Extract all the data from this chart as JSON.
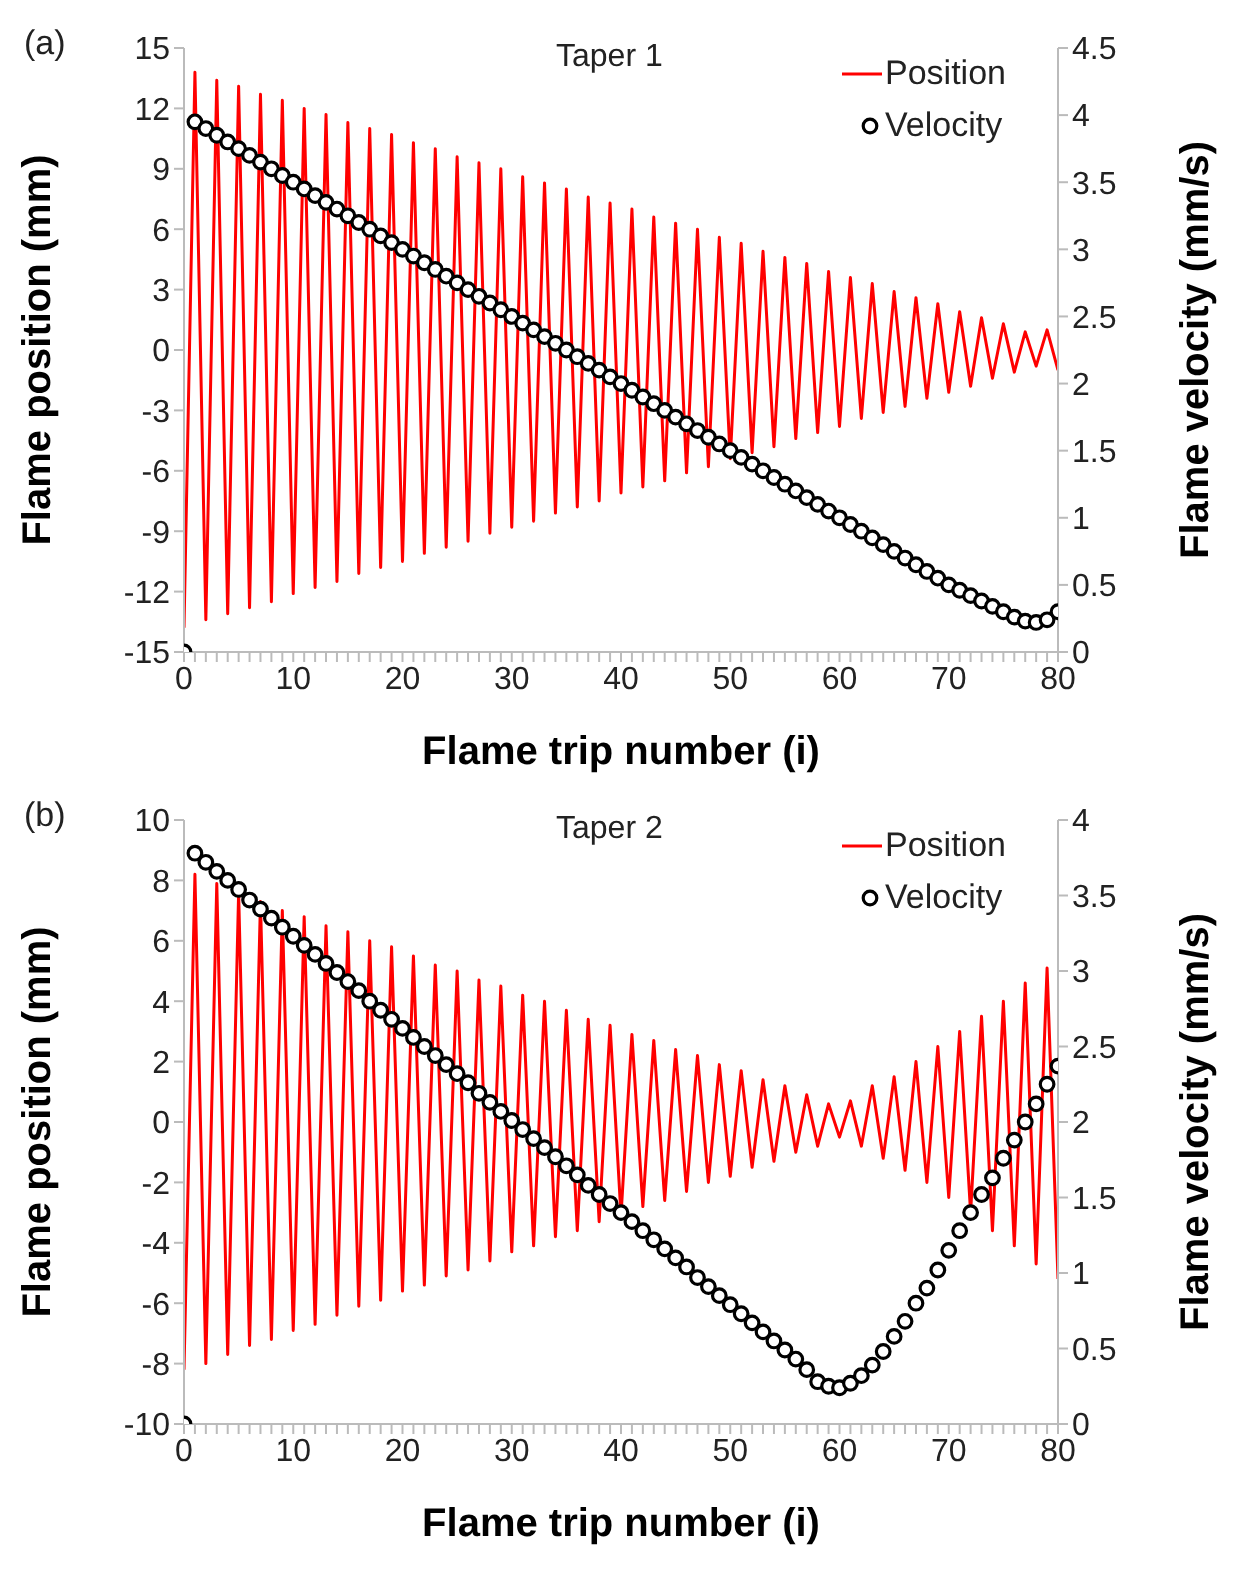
{
  "chart_data": [
    {
      "type": "line",
      "annotations": [
        "(a)",
        "Taper 1"
      ],
      "xlabel": "Flame trip number (i)",
      "ylabel": "Flame position (mm)",
      "y2label": "Flame velocity (mm/s)",
      "legend": "top right",
      "line_style": "solid",
      "x": [
        0,
        1,
        2,
        3,
        4,
        5,
        6,
        7,
        8,
        9,
        10,
        11,
        12,
        13,
        14,
        15,
        16,
        17,
        18,
        19,
        20,
        21,
        22,
        23,
        24,
        25,
        26,
        27,
        28,
        29,
        30,
        31,
        32,
        33,
        34,
        35,
        36,
        37,
        38,
        39,
        40,
        41,
        42,
        43,
        44,
        45,
        46,
        47,
        48,
        49,
        50,
        51,
        52,
        53,
        54,
        55,
        56,
        57,
        58,
        59,
        60,
        61,
        62,
        63,
        64,
        65,
        66,
        67,
        68,
        69,
        70,
        71,
        72,
        73,
        74,
        75,
        76,
        77,
        78,
        79,
        80
      ],
      "xlim": [
        0,
        80
      ],
      "xticks": [
        0,
        {
          "value": 1,
          "label": null
        },
        {
          "value": 2,
          "label": null
        },
        {
          "value": 3,
          "label": null
        },
        {
          "value": 4,
          "label": null
        },
        {
          "value": 5,
          "label": null
        },
        {
          "value": 6,
          "label": null
        },
        {
          "value": 7,
          "label": null
        },
        {
          "value": 8,
          "label": null
        },
        {
          "value": 9,
          "label": null
        },
        10,
        {
          "value": 11,
          "label": null
        },
        {
          "value": 12,
          "label": null
        },
        {
          "value": 13,
          "label": null
        },
        {
          "value": 14,
          "label": null
        },
        {
          "value": 15,
          "label": null
        },
        {
          "value": 16,
          "label": null
        },
        {
          "value": 17,
          "label": null
        },
        {
          "value": 18,
          "label": null
        },
        {
          "value": 19,
          "label": null
        },
        20,
        {
          "value": 21,
          "label": null
        },
        {
          "value": 22,
          "label": null
        },
        {
          "value": 23,
          "label": null
        },
        {
          "value": 24,
          "label": null
        },
        {
          "value": 25,
          "label": null
        },
        {
          "value": 26,
          "label": null
        },
        {
          "value": 27,
          "label": null
        },
        {
          "value": 28,
          "label": null
        },
        {
          "value": 29,
          "label": null
        },
        30,
        {
          "value": 31,
          "label": null
        },
        {
          "value": 32,
          "label": null
        },
        {
          "value": 33,
          "label": null
        },
        {
          "value": 34,
          "label": null
        },
        {
          "value": 35,
          "label": null
        },
        {
          "value": 36,
          "label": null
        },
        {
          "value": 37,
          "label": null
        },
        {
          "value": 38,
          "label": null
        },
        {
          "value": 39,
          "label": null
        },
        40,
        {
          "value": 41,
          "label": null
        },
        {
          "value": 42,
          "label": null
        },
        {
          "value": 43,
          "label": null
        },
        {
          "value": 44,
          "label": null
        },
        {
          "value": 45,
          "label": null
        },
        {
          "value": 46,
          "label": null
        },
        {
          "value": 47,
          "label": null
        },
        {
          "value": 48,
          "label": null
        },
        {
          "value": 49,
          "label": null
        },
        50,
        {
          "value": 51,
          "label": null
        },
        {
          "value": 52,
          "label": null
        },
        {
          "value": 53,
          "label": null
        },
        {
          "value": 54,
          "label": null
        },
        {
          "value": 55,
          "label": null
        },
        {
          "value": 56,
          "label": null
        },
        {
          "value": 57,
          "label": null
        },
        {
          "value": 58,
          "label": null
        },
        {
          "value": 59,
          "label": null
        },
        60,
        {
          "value": 61,
          "label": null
        },
        {
          "value": 62,
          "label": null
        },
        {
          "value": 63,
          "label": null
        },
        {
          "value": 64,
          "label": null
        },
        {
          "value": 65,
          "label": null
        },
        {
          "value": 66,
          "label": null
        },
        {
          "value": 67,
          "label": null
        },
        {
          "value": 68,
          "label": null
        },
        {
          "value": 69,
          "label": null
        },
        70,
        {
          "value": 71,
          "label": null
        },
        {
          "value": 72,
          "label": null
        },
        {
          "value": 73,
          "label": null
        },
        {
          "value": 74,
          "label": null
        },
        {
          "value": 75,
          "label": null
        },
        {
          "value": 76,
          "label": null
        },
        {
          "value": 77,
          "label": null
        },
        {
          "value": 78,
          "label": null
        },
        {
          "value": 79,
          "label": null
        },
        80
      ],
      "ylim": [
        -15,
        15
      ],
      "yticks": [
        -15,
        -12,
        -9,
        -6,
        -3,
        0,
        3,
        6,
        9,
        12,
        15
      ],
      "y2lim": [
        0,
        4.5
      ],
      "y2ticks": [
        0,
        0.5,
        1,
        1.5,
        2,
        2.5,
        3,
        3.5,
        4,
        4.5
      ],
      "series": [
        {
          "name": "Position",
          "color": "#ff0000",
          "marker": "none",
          "values": [
            -13.8,
            13.8,
            -13.4,
            13.4,
            -13.1,
            13.1,
            -12.8,
            12.7,
            -12.5,
            12.4,
            -12.1,
            12.0,
            -11.8,
            11.7,
            -11.5,
            11.3,
            -11.1,
            11.0,
            -10.8,
            10.7,
            -10.5,
            10.3,
            -10.1,
            10.0,
            -9.8,
            9.6,
            -9.5,
            9.3,
            -9.1,
            9.0,
            -8.8,
            8.6,
            -8.5,
            8.3,
            -8.1,
            8.0,
            -7.8,
            7.6,
            -7.5,
            7.3,
            -7.1,
            7.0,
            -6.8,
            6.6,
            -6.5,
            6.3,
            -6.1,
            6.0,
            -5.8,
            5.6,
            -5.4,
            5.3,
            -5.1,
            4.9,
            -4.8,
            4.6,
            -4.4,
            4.3,
            -4.1,
            3.9,
            -3.8,
            3.6,
            -3.4,
            3.3,
            -3.1,
            2.9,
            -2.8,
            2.6,
            -2.4,
            2.3,
            -2.1,
            1.9,
            -1.8,
            1.6,
            -1.4,
            1.3,
            -1.1,
            0.9,
            -0.8,
            1.0,
            -1.0
          ]
        },
        {
          "name": "Velocity",
          "type": "scatter",
          "axis": "y2",
          "color": "#000000",
          "marker": "circle",
          "values": [
            0,
            3.95,
            3.9,
            3.85,
            3.8,
            3.75,
            3.7,
            3.65,
            3.6,
            3.55,
            3.5,
            3.45,
            3.4,
            3.35,
            3.3,
            3.25,
            3.2,
            3.15,
            3.1,
            3.05,
            3.0,
            2.95,
            2.9,
            2.85,
            2.8,
            2.75,
            2.7,
            2.65,
            2.6,
            2.55,
            2.5,
            2.45,
            2.4,
            2.35,
            2.3,
            2.25,
            2.2,
            2.15,
            2.1,
            2.05,
            2.0,
            1.95,
            1.9,
            1.85,
            1.8,
            1.75,
            1.7,
            1.65,
            1.6,
            1.55,
            1.5,
            1.45,
            1.4,
            1.35,
            1.3,
            1.25,
            1.2,
            1.15,
            1.1,
            1.05,
            1.0,
            0.95,
            0.9,
            0.85,
            0.8,
            0.75,
            0.7,
            0.65,
            0.6,
            0.55,
            0.5,
            0.46,
            0.42,
            0.38,
            0.34,
            0.3,
            0.26,
            0.23,
            0.22,
            0.24,
            0.3
          ]
        }
      ]
    },
    {
      "type": "line",
      "annotations": [
        "(b)",
        "Taper 2"
      ],
      "xlabel": "Flame trip number (i)",
      "ylabel": "Flame position (mm)",
      "y2label": "Flame velocity (mm/s)",
      "legend": "top right",
      "line_style": "solid",
      "x": [
        0,
        1,
        2,
        3,
        4,
        5,
        6,
        7,
        8,
        9,
        10,
        11,
        12,
        13,
        14,
        15,
        16,
        17,
        18,
        19,
        20,
        21,
        22,
        23,
        24,
        25,
        26,
        27,
        28,
        29,
        30,
        31,
        32,
        33,
        34,
        35,
        36,
        37,
        38,
        39,
        40,
        41,
        42,
        43,
        44,
        45,
        46,
        47,
        48,
        49,
        50,
        51,
        52,
        53,
        54,
        55,
        56,
        57,
        58,
        59,
        60,
        61,
        62,
        63,
        64,
        65,
        66,
        67,
        68,
        69,
        70,
        71,
        72,
        73,
        74,
        75,
        76,
        77,
        78,
        79,
        80
      ],
      "xlim": [
        0,
        80
      ],
      "xticks": [
        0,
        {
          "value": 1,
          "label": null
        },
        {
          "value": 2,
          "label": null
        },
        {
          "value": 3,
          "label": null
        },
        {
          "value": 4,
          "label": null
        },
        {
          "value": 5,
          "label": null
        },
        {
          "value": 6,
          "label": null
        },
        {
          "value": 7,
          "label": null
        },
        {
          "value": 8,
          "label": null
        },
        {
          "value": 9,
          "label": null
        },
        10,
        {
          "value": 11,
          "label": null
        },
        {
          "value": 12,
          "label": null
        },
        {
          "value": 13,
          "label": null
        },
        {
          "value": 14,
          "label": null
        },
        {
          "value": 15,
          "label": null
        },
        {
          "value": 16,
          "label": null
        },
        {
          "value": 17,
          "label": null
        },
        {
          "value": 18,
          "label": null
        },
        {
          "value": 19,
          "label": null
        },
        20,
        {
          "value": 21,
          "label": null
        },
        {
          "value": 22,
          "label": null
        },
        {
          "value": 23,
          "label": null
        },
        {
          "value": 24,
          "label": null
        },
        {
          "value": 25,
          "label": null
        },
        {
          "value": 26,
          "label": null
        },
        {
          "value": 27,
          "label": null
        },
        {
          "value": 28,
          "label": null
        },
        {
          "value": 29,
          "label": null
        },
        30,
        {
          "value": 31,
          "label": null
        },
        {
          "value": 32,
          "label": null
        },
        {
          "value": 33,
          "label": null
        },
        {
          "value": 34,
          "label": null
        },
        {
          "value": 35,
          "label": null
        },
        {
          "value": 36,
          "label": null
        },
        {
          "value": 37,
          "label": null
        },
        {
          "value": 38,
          "label": null
        },
        {
          "value": 39,
          "label": null
        },
        40,
        {
          "value": 41,
          "label": null
        },
        {
          "value": 42,
          "label": null
        },
        {
          "value": 43,
          "label": null
        },
        {
          "value": 44,
          "label": null
        },
        {
          "value": 45,
          "label": null
        },
        {
          "value": 46,
          "label": null
        },
        {
          "value": 47,
          "label": null
        },
        {
          "value": 48,
          "label": null
        },
        {
          "value": 49,
          "label": null
        },
        50,
        {
          "value": 51,
          "label": null
        },
        {
          "value": 52,
          "label": null
        },
        {
          "value": 53,
          "label": null
        },
        {
          "value": 54,
          "label": null
        },
        {
          "value": 55,
          "label": null
        },
        {
          "value": 56,
          "label": null
        },
        {
          "value": 57,
          "label": null
        },
        {
          "value": 58,
          "label": null
        },
        {
          "value": 59,
          "label": null
        },
        60,
        {
          "value": 61,
          "label": null
        },
        {
          "value": 62,
          "label": null
        },
        {
          "value": 63,
          "label": null
        },
        {
          "value": 64,
          "label": null
        },
        {
          "value": 65,
          "label": null
        },
        {
          "value": 66,
          "label": null
        },
        {
          "value": 67,
          "label": null
        },
        {
          "value": 68,
          "label": null
        },
        {
          "value": 69,
          "label": null
        },
        70,
        {
          "value": 71,
          "label": null
        },
        {
          "value": 72,
          "label": null
        },
        {
          "value": 73,
          "label": null
        },
        {
          "value": 74,
          "label": null
        },
        {
          "value": 75,
          "label": null
        },
        {
          "value": 76,
          "label": null
        },
        {
          "value": 77,
          "label": null
        },
        {
          "value": 78,
          "label": null
        },
        {
          "value": 79,
          "label": null
        },
        80
      ],
      "ylim": [
        -10,
        10
      ],
      "yticks": [
        -10,
        -8,
        -6,
        -4,
        -2,
        0,
        2,
        4,
        6,
        8,
        10
      ],
      "y2lim": [
        0,
        4
      ],
      "y2ticks": [
        0,
        0.5,
        1,
        1.5,
        2,
        2.5,
        3,
        3.5,
        4
      ],
      "series": [
        {
          "name": "Position",
          "color": "#ff0000",
          "marker": "none",
          "values": [
            -8.2,
            8.2,
            -8.0,
            7.9,
            -7.7,
            7.6,
            -7.4,
            7.3,
            -7.2,
            7.0,
            -6.9,
            6.8,
            -6.7,
            6.5,
            -6.4,
            6.3,
            -6.1,
            6.0,
            -5.9,
            5.8,
            -5.6,
            5.5,
            -5.4,
            5.2,
            -5.1,
            5.0,
            -4.9,
            4.7,
            -4.6,
            4.5,
            -4.3,
            4.2,
            -4.1,
            4.0,
            -3.8,
            3.7,
            -3.6,
            3.4,
            -3.3,
            3.2,
            -3.1,
            2.9,
            -2.8,
            2.7,
            -2.6,
            2.4,
            -2.3,
            2.2,
            -2.0,
            1.9,
            -1.8,
            1.7,
            -1.5,
            1.4,
            -1.3,
            1.2,
            -1.0,
            0.9,
            -0.8,
            0.6,
            -0.5,
            0.7,
            -0.8,
            1.2,
            -1.2,
            1.5,
            -1.6,
            2.0,
            -2.0,
            2.5,
            -2.5,
            3.0,
            -3.0,
            3.5,
            -3.6,
            4.0,
            -4.1,
            4.6,
            -4.7,
            5.1,
            -5.2
          ]
        },
        {
          "name": "Velocity",
          "type": "scatter",
          "axis": "y2",
          "color": "#000000",
          "marker": "circle",
          "values": [
            0,
            3.78,
            3.72,
            3.66,
            3.6,
            3.54,
            3.47,
            3.41,
            3.35,
            3.29,
            3.23,
            3.17,
            3.11,
            3.05,
            2.99,
            2.93,
            2.87,
            2.8,
            2.74,
            2.68,
            2.62,
            2.56,
            2.5,
            2.44,
            2.38,
            2.32,
            2.26,
            2.19,
            2.13,
            2.07,
            2.01,
            1.95,
            1.89,
            1.83,
            1.77,
            1.71,
            1.65,
            1.58,
            1.52,
            1.46,
            1.4,
            1.34,
            1.28,
            1.22,
            1.16,
            1.1,
            1.04,
            0.97,
            0.91,
            0.85,
            0.79,
            0.73,
            0.67,
            0.61,
            0.55,
            0.49,
            0.43,
            0.36,
            0.28,
            0.25,
            0.24,
            0.27,
            0.32,
            0.39,
            0.48,
            0.58,
            0.68,
            0.8,
            0.9,
            1.02,
            1.15,
            1.28,
            1.4,
            1.52,
            1.63,
            1.76,
            1.88,
            2.0,
            2.12,
            2.25,
            2.37
          ]
        }
      ]
    }
  ]
}
